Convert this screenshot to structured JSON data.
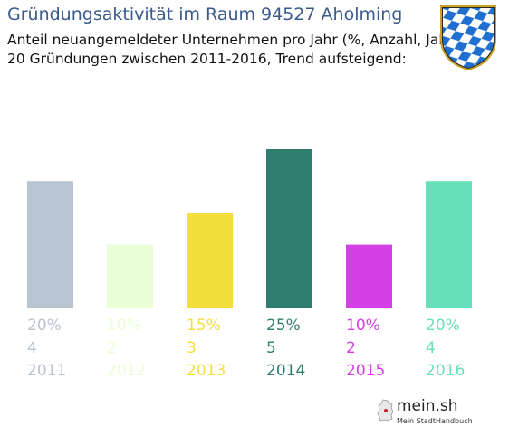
{
  "header": {
    "title": "Gründungsaktivität im Raum 94527 Aholming",
    "subtitle1": "Anteil neuangemeldeter Unternehmen pro Jahr (%, Anzahl, Jahr)",
    "subtitle2": "20 Gründungen zwischen 2011-2016, Trend aufsteigend:"
  },
  "crest": {
    "icon": "bavarian-crest-icon",
    "colors": [
      "#1f6fd1",
      "#ffffff"
    ]
  },
  "chart_data": {
    "type": "bar",
    "categories": [
      "2011",
      "2012",
      "2013",
      "2014",
      "2015",
      "2016"
    ],
    "values": [
      20,
      10,
      15,
      25,
      10,
      20
    ],
    "counts": [
      4,
      2,
      3,
      5,
      2,
      4
    ],
    "percent_labels": [
      "20%",
      "10%",
      "15%",
      "25%",
      "10%",
      "20%"
    ],
    "colors": [
      "#b8c4d0",
      "#eaffd8",
      "#f2df3c",
      "#2e7d6f",
      "#d43fe6",
      "#66e0bb"
    ],
    "title": "",
    "xlabel": "",
    "ylabel": "",
    "ylim": [
      0,
      25
    ],
    "grid": false,
    "axes_visible": false
  },
  "branding": {
    "name": "mein.sh",
    "tagline": "Mein StadtHandbuch",
    "icon": "germany-map-icon"
  }
}
